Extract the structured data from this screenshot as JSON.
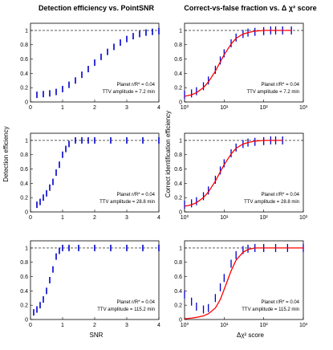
{
  "figure": {
    "title_left": "Detection efficiency vs. PointSNR",
    "title_right": "Correct-vs-false fraction vs. Δ χ² score",
    "ylabel_left": "Detection efficiency",
    "ylabel_right": "Correct identification efficiency",
    "xlabel_left": "SNR",
    "xlabel_right": "Δχ² score",
    "colors": {
      "data": "#0000cc",
      "fit": "#ff0000",
      "axis": "#000000",
      "dashed": "#000000"
    }
  },
  "chart_data": [
    {
      "type": "scatter",
      "panel": "left-row1",
      "annotation": [
        "Planet r/R* = 0.04",
        "TTV amplitude = 7.2 min"
      ],
      "xlim": [
        0,
        4
      ],
      "ylim": [
        0,
        1.1
      ],
      "xticks": [
        "0",
        "1",
        "2",
        "3",
        "4"
      ],
      "yticks": [
        "0",
        "0.2",
        "0.4",
        "0.6",
        "0.8",
        "1"
      ],
      "series": [
        {
          "x": [
            0.2,
            0.4,
            0.6,
            0.8,
            1.0,
            1.2,
            1.4,
            1.6,
            1.8,
            2.0,
            2.2,
            2.4,
            2.6,
            2.8,
            3.0,
            3.2,
            3.4,
            3.6,
            3.8,
            4.0
          ],
          "values": [
            0.1,
            0.11,
            0.12,
            0.14,
            0.18,
            0.24,
            0.3,
            0.38,
            0.46,
            0.55,
            0.63,
            0.7,
            0.77,
            0.83,
            0.88,
            0.92,
            0.95,
            0.97,
            0.98,
            0.99
          ]
        }
      ]
    },
    {
      "type": "line",
      "panel": "right-row1",
      "xscale": "log",
      "annotation": [
        "Planet r/R* = 0.04",
        "TTV amplitude = 7.2 min"
      ],
      "xlim": [
        1,
        1000
      ],
      "ylim": [
        0,
        1.1
      ],
      "xticks": [
        "10⁰",
        "10¹",
        "10²",
        "10³"
      ],
      "yticks": [
        "0",
        "0.2",
        "0.4",
        "0.6",
        "0.8",
        "1"
      ],
      "series": [
        {
          "x": [
            1,
            1.5,
            2,
            3,
            4,
            6,
            8,
            10,
            15,
            20,
            30,
            40,
            60,
            100,
            150,
            200,
            300,
            500
          ],
          "values": [
            0.1,
            0.12,
            0.15,
            0.22,
            0.3,
            0.45,
            0.58,
            0.68,
            0.82,
            0.9,
            0.95,
            0.97,
            0.98,
            0.99,
            1.0,
            1.0,
            1.0,
            1.0
          ]
        },
        {
          "x": [
            1,
            1.5,
            2,
            3,
            4,
            6,
            8,
            10,
            15,
            20,
            30,
            40,
            60,
            100,
            150,
            200,
            300,
            500
          ],
          "values": [
            0.08,
            0.1,
            0.13,
            0.2,
            0.28,
            0.43,
            0.56,
            0.66,
            0.81,
            0.89,
            0.95,
            0.97,
            0.99,
            1.0,
            1.0,
            1.0,
            1.0,
            1.0
          ]
        }
      ]
    },
    {
      "type": "scatter",
      "panel": "left-row2",
      "annotation": [
        "Planet r/R* = 0.04",
        "TTV amplitude = 28.8 min"
      ],
      "xlim": [
        0,
        4
      ],
      "ylim": [
        0,
        1.1
      ],
      "xticks": [
        "0",
        "1",
        "2",
        "3",
        "4"
      ],
      "yticks": [
        "0",
        "0.2",
        "0.4",
        "0.6",
        "0.8",
        "1"
      ],
      "series": [
        {
          "x": [
            0.2,
            0.3,
            0.4,
            0.5,
            0.6,
            0.7,
            0.8,
            0.9,
            1.0,
            1.1,
            1.2,
            1.4,
            1.6,
            1.8,
            2.0,
            2.5,
            3.0,
            3.5,
            4.0
          ],
          "values": [
            0.1,
            0.14,
            0.2,
            0.26,
            0.34,
            0.42,
            0.55,
            0.66,
            0.8,
            0.88,
            0.95,
            1.0,
            1.0,
            1.0,
            1.0,
            1.0,
            1.0,
            1.0,
            1.0
          ]
        }
      ]
    },
    {
      "type": "line",
      "panel": "right-row2",
      "xscale": "log",
      "annotation": [
        "Planet r/R* = 0.04",
        "TTV amplitude = 28.8 min"
      ],
      "xlim": [
        1,
        1000
      ],
      "ylim": [
        0,
        1.1
      ],
      "xticks": [
        "10⁰",
        "10¹",
        "10²",
        "10³"
      ],
      "yticks": [
        "0",
        "0.2",
        "0.4",
        "0.6",
        "0.8",
        "1"
      ],
      "series": [
        {
          "x": [
            1,
            1.5,
            2,
            3,
            4,
            6,
            8,
            10,
            15,
            20,
            30,
            40,
            60,
            100,
            150,
            200,
            300
          ],
          "values": [
            0.1,
            0.12,
            0.15,
            0.22,
            0.3,
            0.45,
            0.58,
            0.68,
            0.82,
            0.9,
            0.95,
            0.97,
            0.98,
            0.99,
            1.0,
            1.0,
            1.0
          ]
        },
        {
          "x": [
            1,
            1.5,
            2,
            3,
            4,
            6,
            8,
            10,
            15,
            20,
            30,
            40,
            60,
            100,
            150,
            200,
            300
          ],
          "values": [
            0.08,
            0.1,
            0.13,
            0.2,
            0.28,
            0.43,
            0.56,
            0.66,
            0.81,
            0.89,
            0.95,
            0.97,
            0.99,
            1.0,
            1.0,
            1.0,
            1.0
          ]
        }
      ]
    },
    {
      "type": "scatter",
      "panel": "left-row3",
      "annotation": [
        "Planet r/R* = 0.04",
        "TTV amplitude = 115.2 min"
      ],
      "xlim": [
        0,
        4
      ],
      "ylim": [
        0,
        1.1
      ],
      "xticks": [
        "0",
        "1",
        "2",
        "3",
        "4"
      ],
      "yticks": [
        "0",
        "0.2",
        "0.4",
        "0.6",
        "0.8",
        "1"
      ],
      "series": [
        {
          "x": [
            0.1,
            0.2,
            0.3,
            0.4,
            0.5,
            0.6,
            0.7,
            0.8,
            0.9,
            1.0,
            1.2,
            1.5,
            2.0,
            2.5,
            3.0,
            3.5,
            4.0
          ],
          "values": [
            0.1,
            0.14,
            0.2,
            0.28,
            0.4,
            0.55,
            0.7,
            0.88,
            0.96,
            1.0,
            1.0,
            1.0,
            1.0,
            1.0,
            1.0,
            1.0,
            1.0
          ]
        }
      ]
    },
    {
      "type": "line",
      "panel": "right-row3",
      "xscale": "log",
      "annotation": [
        "Planet r/R* = 0.04",
        "TTV amplitude = 115.2 min"
      ],
      "xlim": [
        1,
        1000
      ],
      "ylim": [
        0,
        1.1
      ],
      "xticks": [
        "10⁰",
        "10¹",
        "10²",
        "10³"
      ],
      "yticks": [
        "0",
        "0.2",
        "0.4",
        "0.6",
        "0.8",
        "1"
      ],
      "series": [
        {
          "x": [
            1,
            1.5,
            2,
            3,
            4,
            6,
            8,
            10,
            15,
            20,
            30,
            40,
            60,
            100,
            200,
            400,
            1000
          ],
          "values": [
            0.35,
            0.25,
            0.18,
            0.14,
            0.16,
            0.3,
            0.45,
            0.58,
            0.78,
            0.9,
            0.97,
            0.99,
            1.0,
            1.0,
            1.0,
            1.0,
            1.0
          ]
        },
        {
          "x": [
            1,
            1.5,
            2,
            3,
            4,
            6,
            8,
            10,
            15,
            20,
            30,
            40,
            60,
            100,
            200,
            400,
            1000
          ],
          "values": [
            0.01,
            0.02,
            0.03,
            0.05,
            0.08,
            0.16,
            0.28,
            0.42,
            0.68,
            0.83,
            0.94,
            0.98,
            1.0,
            1.0,
            1.0,
            1.0,
            1.0
          ]
        }
      ]
    }
  ]
}
